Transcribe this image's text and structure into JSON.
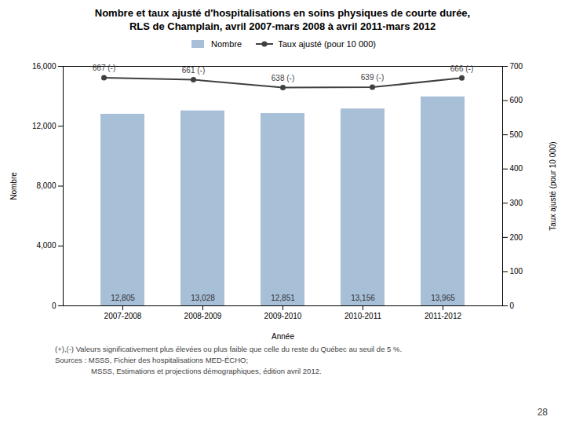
{
  "chart_data": {
    "type": "bar",
    "title": "Nombre et taux ajusté d'hospitalisations en soins physiques de courte durée,",
    "subtitle": "RLS de Champlain, avril 2007-mars 2008 à avril 2011-mars 2012",
    "xlabel": "Année",
    "ylabel": "Nombre",
    "y2label": "Taux ajusté (pour 10 000)",
    "categories": [
      "2007-2008",
      "2008-2009",
      "2009-2010",
      "2010-2011",
      "2011-2012"
    ],
    "series": [
      {
        "name": "Nombre",
        "type": "bar",
        "color": "#A8BFD8",
        "values": [
          12805,
          13028,
          12851,
          13156,
          13965
        ],
        "data_labels": true,
        "value_labels": [
          "12,805",
          "13,028",
          "12,851",
          "13,156",
          "13,965"
        ]
      },
      {
        "name": "Taux ajusté (pour 10 000)",
        "type": "line",
        "axis": "y2",
        "color": "#404040",
        "marker": "circle",
        "values": [
          667,
          661,
          638,
          639,
          666
        ],
        "data_labels": true,
        "value_labels": [
          "667 (-)",
          "661 (-)",
          "638 (-)",
          "639 (-)",
          "666 (-)"
        ]
      }
    ],
    "ylim": [
      0,
      16000
    ],
    "yticks": [
      0,
      {
        "value": 4000,
        "label": "4,000"
      },
      {
        "value": 8000,
        "label": "8,000"
      },
      {
        "value": 12000,
        "label": "12,000"
      },
      {
        "value": 16000,
        "label": "16,000"
      }
    ],
    "y2lim": [
      0,
      700
    ],
    "y2ticks": [
      0,
      100,
      200,
      300,
      400,
      500,
      600,
      700
    ],
    "grid": false,
    "legend": "top",
    "annotations": [
      "(+),(-) Valeurs significativement plus élevées ou plus faible que celle du reste du Québec au seuil de 5 %.",
      "Sources : MSSS, Fichier des hospitalisations MED-ÉCHO;",
      "MSSS, Estimations et projections démographiques, édition avril 2012.",
      "28"
    ]
  }
}
